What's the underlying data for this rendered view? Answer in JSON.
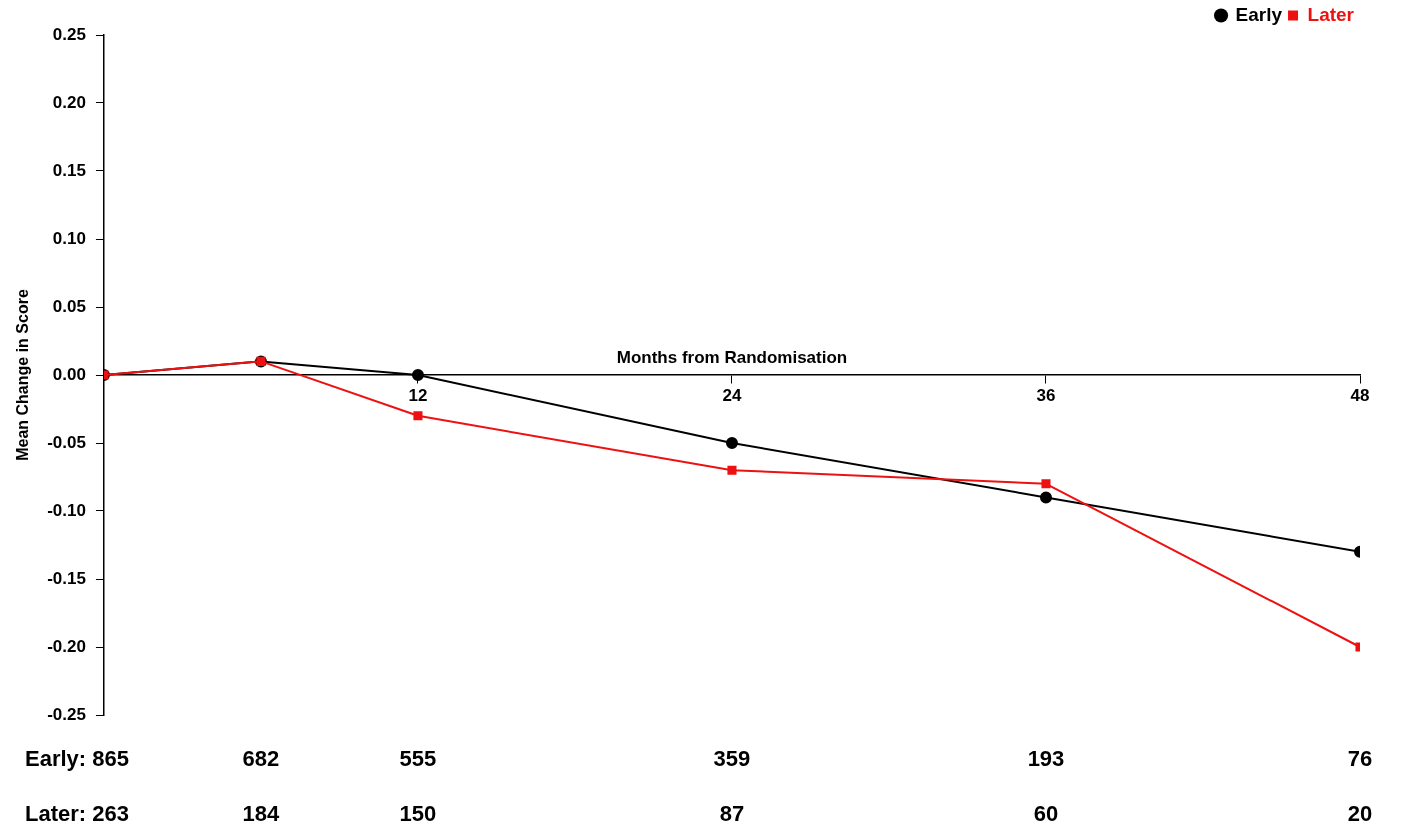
{
  "chart_data": {
    "type": "line",
    "xlabel": "Months from Randomisation",
    "ylabel": "Mean Change in Score",
    "x": [
      0,
      6,
      12,
      24,
      36,
      48
    ],
    "series": [
      {
        "name": "Early",
        "color": "#000000",
        "marker": "circle",
        "values": [
          0,
          0.01,
          0.0,
          -0.05,
          -0.09,
          -0.13
        ]
      },
      {
        "name": "Later",
        "color": "#ee1111",
        "marker": "square",
        "values": [
          0,
          0.01,
          -0.03,
          -0.07,
          -0.08,
          -0.2
        ]
      }
    ],
    "xlim": [
      0,
      48
    ],
    "xticks": [
      12,
      24,
      36,
      48
    ],
    "ylim": [
      -0.25,
      0.25
    ],
    "yticks": [
      {
        "value": -0.25,
        "label": "-0.25"
      },
      {
        "value": -0.2,
        "label": "-0.20"
      },
      {
        "value": -0.15,
        "label": "-0.15"
      },
      {
        "value": -0.1,
        "label": "-0.10"
      },
      {
        "value": -0.05,
        "label": "-0.05"
      },
      {
        "value": 0,
        "label": "0.00"
      },
      {
        "value": 0.05,
        "label": "0.05"
      },
      {
        "value": 0.1,
        "label": "0.10"
      },
      {
        "value": 0.15,
        "label": "0.15"
      },
      {
        "value": 0.2,
        "label": "0.20"
      },
      {
        "value": 0.25,
        "label": "0.25"
      }
    ],
    "grid": false,
    "legend": "top right",
    "line_style": "solid",
    "annotations": [
      "Early: 865",
      "682",
      "555",
      "359",
      "193",
      "76",
      "Later: 263",
      "184",
      "150",
      "87",
      "60",
      "20"
    ]
  }
}
